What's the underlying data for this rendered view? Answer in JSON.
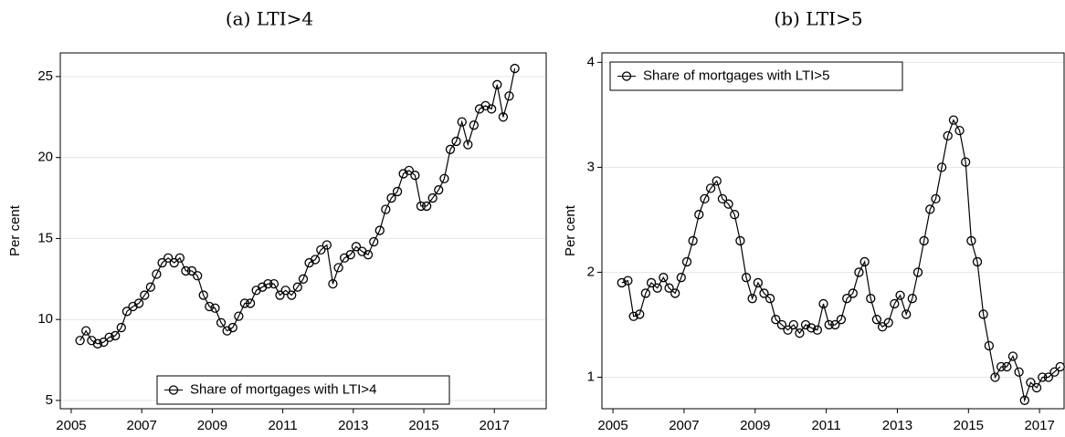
{
  "chart_data": [
    {
      "type": "line",
      "title": "(a) LTI>4",
      "y_label": "Per cent",
      "x": [
        2005.25,
        2005.42,
        2005.58,
        2005.75,
        2005.92,
        2006.08,
        2006.25,
        2006.42,
        2006.58,
        2006.75,
        2006.92,
        2007.08,
        2007.25,
        2007.42,
        2007.58,
        2007.75,
        2007.92,
        2008.08,
        2008.25,
        2008.42,
        2008.58,
        2008.75,
        2008.92,
        2009.08,
        2009.25,
        2009.42,
        2009.58,
        2009.75,
        2009.92,
        2010.08,
        2010.25,
        2010.42,
        2010.58,
        2010.75,
        2010.92,
        2011.08,
        2011.25,
        2011.42,
        2011.58,
        2011.75,
        2011.92,
        2012.08,
        2012.25,
        2012.42,
        2012.58,
        2012.75,
        2012.92,
        2013.08,
        2013.25,
        2013.42,
        2013.58,
        2013.75,
        2013.92,
        2014.08,
        2014.25,
        2014.42,
        2014.58,
        2014.75,
        2014.92,
        2015.08,
        2015.25,
        2015.42,
        2015.58,
        2015.75,
        2015.92,
        2016.08,
        2016.25,
        2016.42,
        2016.58,
        2016.75,
        2016.92,
        2017.08,
        2017.25,
        2017.42,
        2017.58
      ],
      "series": [
        {
          "name": "Share of mortgages with LTI>4",
          "color": "#000000",
          "values": [
            8.7,
            9.3,
            8.7,
            8.5,
            8.6,
            8.9,
            9.0,
            9.5,
            10.5,
            10.8,
            11.0,
            11.5,
            12.0,
            12.8,
            13.5,
            13.8,
            13.5,
            13.8,
            13.0,
            13.0,
            12.7,
            11.5,
            10.8,
            10.7,
            9.8,
            9.3,
            9.5,
            10.2,
            11.0,
            11.0,
            11.8,
            12.0,
            12.2,
            12.2,
            11.5,
            11.8,
            11.5,
            12.0,
            12.5,
            13.5,
            13.7,
            14.3,
            14.6,
            12.2,
            13.2,
            13.8,
            14.0,
            14.5,
            14.2,
            14.0,
            14.8,
            15.5,
            16.8,
            17.5,
            17.9,
            19.0,
            19.2,
            18.9,
            17.0,
            17.0,
            17.5,
            18.0,
            18.7,
            20.5,
            21.0,
            22.2,
            20.8,
            22.0,
            23.0,
            23.2,
            23.0,
            24.5,
            22.5,
            23.8,
            25.5
          ]
        }
      ],
      "xlim": [
        2004.69,
        2018.47
      ],
      "ylim": [
        4.49,
        26.46
      ],
      "xticks": [
        2005,
        2007,
        2009,
        2011,
        2013,
        2015,
        2017
      ],
      "yticks": [
        5,
        10,
        15,
        20,
        25
      ],
      "grid": true,
      "legend": "bottom"
    },
    {
      "type": "line",
      "title": "(b) LTI>5",
      "y_label": "Per cent",
      "x": [
        2005.25,
        2005.42,
        2005.58,
        2005.75,
        2005.92,
        2006.08,
        2006.25,
        2006.42,
        2006.58,
        2006.75,
        2006.92,
        2007.08,
        2007.25,
        2007.42,
        2007.58,
        2007.75,
        2007.92,
        2008.08,
        2008.25,
        2008.42,
        2008.58,
        2008.75,
        2008.92,
        2009.08,
        2009.25,
        2009.42,
        2009.58,
        2009.75,
        2009.92,
        2010.08,
        2010.25,
        2010.42,
        2010.58,
        2010.75,
        2010.92,
        2011.08,
        2011.25,
        2011.42,
        2011.58,
        2011.75,
        2011.92,
        2012.08,
        2012.25,
        2012.42,
        2012.58,
        2012.75,
        2012.92,
        2013.08,
        2013.25,
        2013.42,
        2013.58,
        2013.75,
        2013.92,
        2014.08,
        2014.25,
        2014.42,
        2014.58,
        2014.75,
        2014.92,
        2015.08,
        2015.25,
        2015.42,
        2015.58,
        2015.75,
        2015.92,
        2016.08,
        2016.25,
        2016.42,
        2016.58,
        2016.75,
        2016.92,
        2017.08,
        2017.25,
        2017.42,
        2017.58
      ],
      "series": [
        {
          "name": "Share of mortgages with LTI>5",
          "color": "#000000",
          "values": [
            1.9,
            1.92,
            1.58,
            1.6,
            1.8,
            1.9,
            1.85,
            1.95,
            1.85,
            1.8,
            1.95,
            2.1,
            2.3,
            2.55,
            2.7,
            2.8,
            2.87,
            2.7,
            2.65,
            2.55,
            2.3,
            1.95,
            1.75,
            1.9,
            1.8,
            1.75,
            1.55,
            1.5,
            1.45,
            1.5,
            1.42,
            1.5,
            1.47,
            1.45,
            1.7,
            1.5,
            1.5,
            1.55,
            1.75,
            1.8,
            2.0,
            2.1,
            1.75,
            1.55,
            1.48,
            1.52,
            1.7,
            1.78,
            1.6,
            1.75,
            2.0,
            2.3,
            2.6,
            2.7,
            3.0,
            3.3,
            3.45,
            3.35,
            3.05,
            2.3,
            2.1,
            1.6,
            1.3,
            1.0,
            1.1,
            1.1,
            1.2,
            1.05,
            0.78,
            0.95,
            0.9,
            1.0,
            1.0,
            1.05,
            1.1
          ]
        }
      ],
      "xlim": [
        2004.69,
        2017.69
      ],
      "ylim": [
        0.7,
        4.09
      ],
      "xticks": [
        2005,
        2007,
        2009,
        2011,
        2013,
        2015,
        2017
      ],
      "yticks": [
        1,
        2,
        3,
        4
      ],
      "grid": true,
      "legend": "top left"
    }
  ]
}
